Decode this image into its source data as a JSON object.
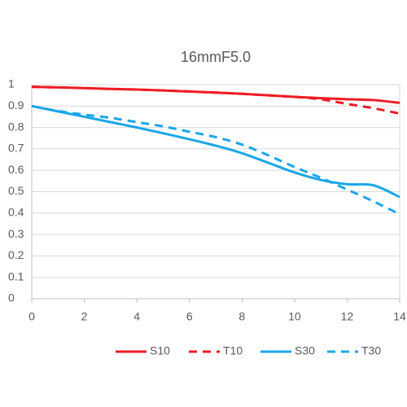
{
  "chart_data": {
    "type": "line",
    "title": "16mmF5.0",
    "x": [
      0,
      1,
      2,
      3,
      4,
      5,
      6,
      7,
      8,
      9,
      10,
      11,
      12,
      13,
      14
    ],
    "series": [
      {
        "name": "S10",
        "color": "#ee1c25",
        "dash": false,
        "values": [
          0.99,
          0.987,
          0.984,
          0.98,
          0.977,
          0.973,
          0.968,
          0.963,
          0.957,
          0.95,
          0.943,
          0.937,
          0.932,
          0.928,
          0.915
        ]
      },
      {
        "name": "T10",
        "color": "#ee1c25",
        "dash": true,
        "values": [
          0.99,
          0.987,
          0.984,
          0.98,
          0.977,
          0.973,
          0.968,
          0.963,
          0.957,
          0.95,
          0.943,
          0.932,
          0.91,
          0.89,
          0.865
        ]
      },
      {
        "name": "S30",
        "color": "#1aa7e8",
        "dash": false,
        "values": [
          0.9,
          0.875,
          0.85,
          0.825,
          0.8,
          0.773,
          0.745,
          0.715,
          0.68,
          0.635,
          0.59,
          0.555,
          0.535,
          0.53,
          0.475
        ]
      },
      {
        "name": "T30",
        "color": "#1aa7e8",
        "dash": true,
        "values": [
          0.9,
          0.877,
          0.86,
          0.845,
          0.825,
          0.805,
          0.78,
          0.755,
          0.72,
          0.67,
          0.615,
          0.565,
          0.51,
          0.455,
          0.395
        ]
      }
    ],
    "xlim": [
      0,
      14
    ],
    "xticks": [
      0,
      2,
      4,
      6,
      8,
      10,
      12,
      14
    ],
    "ylim": [
      0,
      1
    ],
    "yticks": [
      0,
      0.1,
      0.2,
      0.3,
      0.4,
      0.5,
      0.6,
      0.7,
      0.8,
      0.9,
      1
    ],
    "grid": true,
    "legend": "bottom"
  }
}
